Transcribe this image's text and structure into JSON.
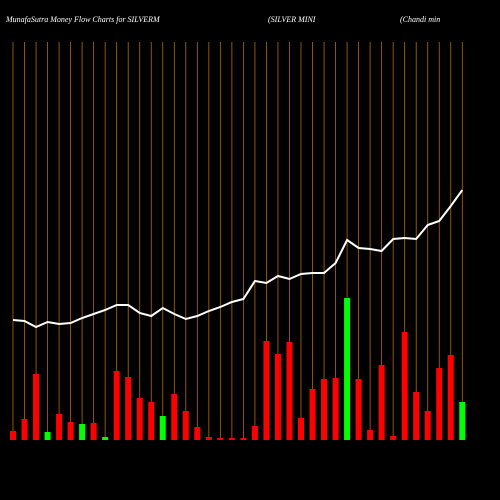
{
  "chart_data": {
    "type": "bar",
    "title": "MunafaSutra  Money Flow  Charts for SILVERM",
    "subtitle": "(SILVER MINI",
    "annotation": "(Chandi   min",
    "categories": [
      null,
      null,
      null,
      null,
      null,
      null,
      null,
      null,
      null,
      null,
      null,
      null,
      null,
      null,
      null,
      null,
      null,
      null,
      null,
      null,
      null,
      null,
      null,
      null,
      null,
      null,
      null,
      null,
      null,
      null,
      null,
      null,
      null,
      null,
      null,
      null,
      null,
      null,
      null,
      null
    ],
    "values": [
      9,
      21,
      66,
      8,
      26,
      18,
      16,
      17,
      3,
      69,
      63,
      42,
      38,
      24,
      46,
      29,
      13,
      3,
      2,
      2,
      2,
      14,
      99,
      86,
      98,
      22,
      51,
      61,
      62,
      142,
      61,
      10,
      75,
      4,
      108,
      48,
      29,
      72,
      85,
      38
    ],
    "colors": [
      "#ff0000",
      "#ff0000",
      "#ff0000",
      "#00ff00",
      "#ff0000",
      "#ff0000",
      "#00ff00",
      "#ff0000",
      "#00ff00",
      "#ff0000",
      "#ff0000",
      "#ff0000",
      "#ff0000",
      "#00ff00",
      "#ff0000",
      "#ff0000",
      "#ff0000",
      "#ff0000",
      "#ff0000",
      "#ff0000",
      "#ff0000",
      "#ff0000",
      "#ff0000",
      "#ff0000",
      "#ff0000",
      "#ff0000",
      "#ff0000",
      "#ff0000",
      "#ff0000",
      "#00ff00",
      "#ff0000",
      "#ff0000",
      "#ff0000",
      "#ff0000",
      "#ff0000",
      "#ff0000",
      "#ff0000",
      "#ff0000",
      "#ff0000",
      "#00ff00"
    ],
    "line_values": [
      120,
      119,
      113,
      118,
      116,
      117,
      122,
      126,
      130,
      135,
      135,
      127,
      124,
      132,
      126,
      121,
      124,
      129,
      133,
      138,
      141,
      159,
      157,
      164,
      161,
      166,
      167,
      167,
      177,
      200,
      192,
      191,
      189,
      201,
      202,
      201,
      215,
      219,
      234,
      250
    ],
    "line_color": "#ffffff",
    "grid_color": "#b36b00",
    "ylim": [
      0,
      440
    ]
  }
}
